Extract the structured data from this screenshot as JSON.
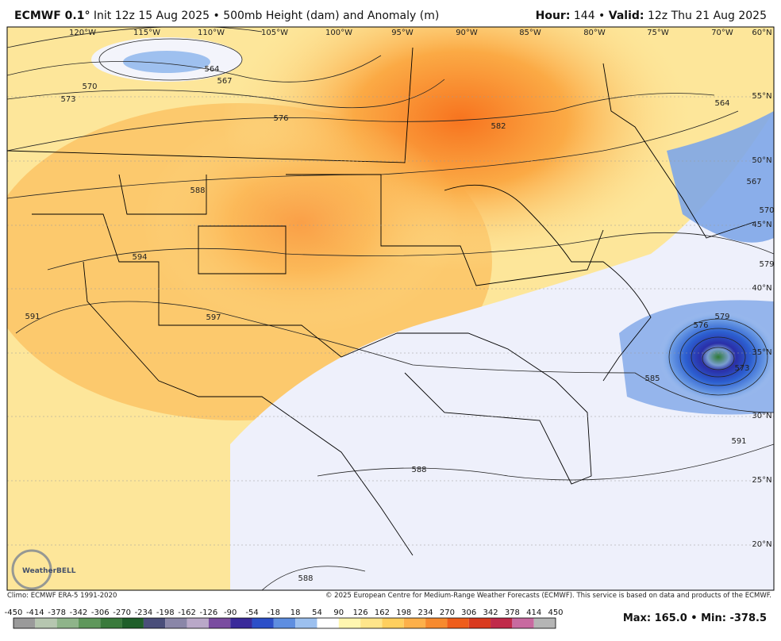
{
  "header": {
    "model": "ECMWF 0.1°",
    "title": "Init 12z 15 Aug 2025 • 500mb Height (dam) and Anomaly (m)",
    "hour_label": "Hour:",
    "hour": "144 •",
    "valid_label": "Valid:",
    "valid": "12z Thu 21 Aug 2025"
  },
  "map": {
    "longitude_labels": [
      "120°W",
      "115°W",
      "110°W",
      "105°W",
      "100°W",
      "95°W",
      "90°W",
      "85°W",
      "80°W",
      "75°W",
      "70°W",
      "60°N"
    ],
    "latitude_labels": [
      "55°N",
      "50°N",
      "45°N",
      "40°N",
      "35°N",
      "30°N",
      "25°N",
      "20°N"
    ],
    "contour_labels": [
      564,
      567,
      570,
      573,
      576,
      582,
      588,
      594,
      597,
      591,
      564,
      567,
      570,
      579,
      576,
      579,
      573,
      585,
      591,
      588,
      588
    ],
    "logo": "WeatherBELL"
  },
  "footer": {
    "climo": "Climo: ECMWF ERA-5 1991-2020",
    "copyright": "© 2025 European Centre for Medium-Range Weather Forecasts (ECMWF). This service is based on data and products of the ECMWF."
  },
  "colorbar": {
    "labels": [
      -450,
      -414,
      -378,
      -342,
      -306,
      -270,
      -234,
      -198,
      -162,
      -126,
      -90,
      -54,
      -18,
      18,
      54,
      90,
      126,
      162,
      198,
      234,
      270,
      306,
      342,
      378,
      414,
      450
    ],
    "colors": [
      "#9a9a9a",
      "#b6c6b0",
      "#8fb48a",
      "#5f975b",
      "#3a7a3c",
      "#1f5f2a",
      "#4a4e7a",
      "#8a86a8",
      "#b9a8c8",
      "#7a4ca0",
      "#3a2a9a",
      "#2c4fc8",
      "#5e8ee0",
      "#9cc0ef",
      "#ffffff",
      "#fff6b0",
      "#ffe58a",
      "#ffcf5e",
      "#fdb04a",
      "#f78a2e",
      "#ef5d1a",
      "#d93a1e",
      "#c02a4a",
      "#c86aa0",
      "#b5b5b5"
    ],
    "max_min": "Max: 165.0 • Min: -378.5"
  }
}
